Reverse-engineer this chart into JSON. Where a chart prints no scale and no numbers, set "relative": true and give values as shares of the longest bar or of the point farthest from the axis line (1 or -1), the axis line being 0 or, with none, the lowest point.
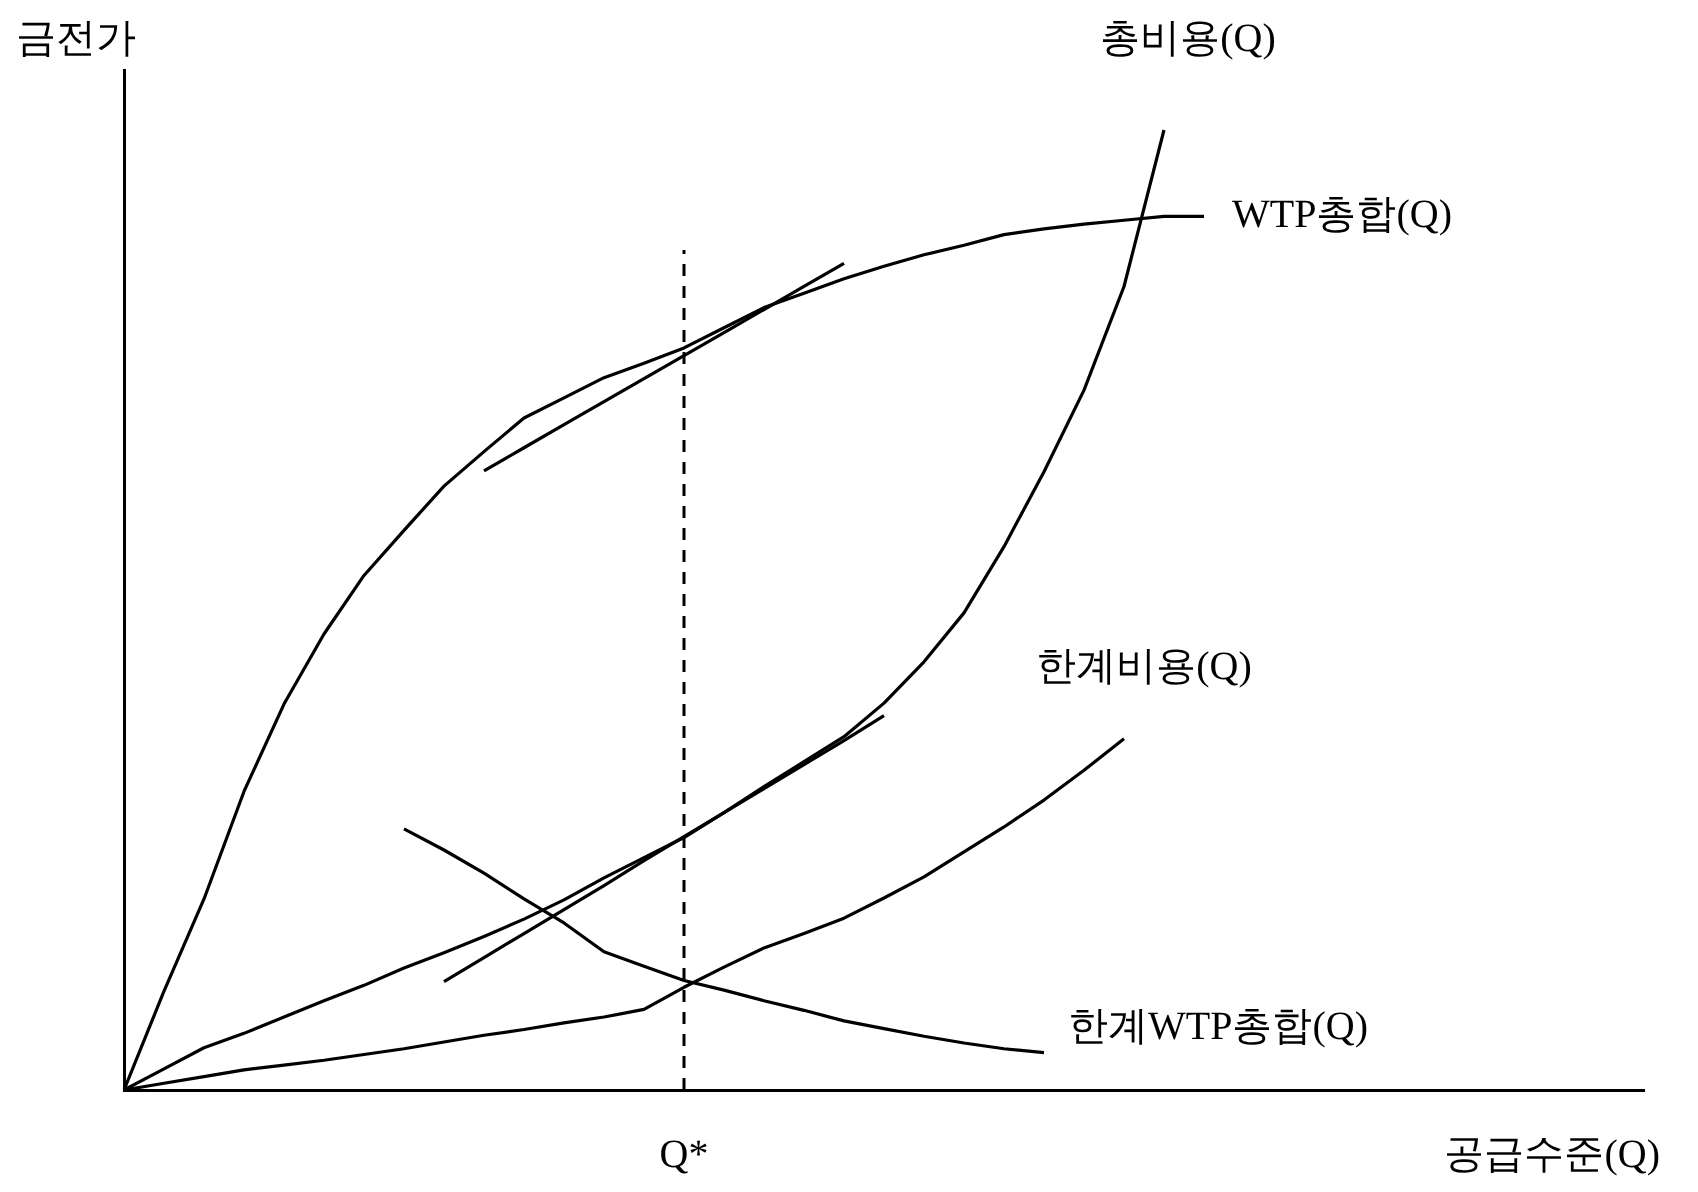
{
  "chart_data": {
    "type": "line",
    "xlabel": "공급수준(Q)",
    "ylabel": "금전가",
    "relative": true,
    "marker": "none",
    "line_style": "solid",
    "categories": [
      null,
      null,
      null,
      null,
      null,
      null,
      null,
      null,
      null,
      null,
      null,
      null,
      null,
      null,
      null,
      null,
      null,
      null,
      null,
      null,
      null,
      null,
      null,
      null,
      null,
      null,
      null,
      null,
      null,
      null,
      null,
      null,
      null,
      null,
      null,
      null,
      null,
      null,
      null
    ],
    "series": [
      {
        "name": "총비용(Q)",
        "color": "#000000",
        "values": [
          0,
          0.022,
          0.044,
          0.059,
          0.076,
          0.093,
          0.109,
          0.127,
          0.143,
          0.16,
          0.178,
          0.198,
          0.221,
          0.242,
          0.263,
          0.289,
          0.316,
          0.342,
          0.368,
          0.403,
          0.446,
          0.497,
          0.566,
          0.644,
          0.729,
          0.837,
          1.0,
          null,
          null,
          null,
          null,
          null,
          null,
          null,
          null,
          null,
          null,
          null,
          null
        ]
      },
      {
        "name": "WTP총합(Q)",
        "color": "#000000",
        "values": [
          0,
          0.103,
          0.199,
          0.311,
          0.402,
          0.475,
          0.536,
          0.583,
          0.629,
          0.665,
          0.7,
          0.721,
          0.742,
          0.757,
          0.773,
          0.794,
          0.815,
          0.83,
          0.845,
          0.858,
          0.87,
          0.88,
          0.891,
          0.897,
          0.902,
          0.906,
          0.91,
          0.91,
          null,
          null,
          null,
          null,
          null,
          null,
          null,
          null,
          null,
          null,
          null
        ]
      },
      {
        "name": "한계비용(Q)",
        "color": "#000000",
        "values": [
          0,
          0.007,
          0.014,
          0.021,
          0.026,
          0.031,
          0.037,
          0.043,
          0.05,
          0.057,
          0.063,
          0.07,
          0.076,
          0.084,
          0.107,
          0.128,
          0.148,
          0.163,
          0.179,
          0.2,
          0.222,
          0.248,
          0.274,
          0.302,
          0.333,
          0.366,
          null,
          null,
          null,
          null,
          null,
          null,
          null,
          null,
          null,
          null,
          null,
          null,
          null
        ]
      },
      {
        "name": "한계WTP총합(Q)",
        "color": "#000000",
        "values": [
          null,
          null,
          null,
          null,
          null,
          null,
          null,
          0.272,
          0.25,
          0.226,
          0.199,
          0.174,
          0.144,
          0.129,
          0.114,
          0.104,
          0.093,
          0.083,
          0.072,
          0.064,
          0.056,
          0.049,
          0.043,
          0.039,
          null,
          null,
          null,
          null,
          null,
          null,
          null,
          null,
          null,
          null,
          null,
          null,
          null,
          null,
          null
        ]
      },
      {
        "color": "#000000",
        "values": [
          null,
          null,
          null,
          null,
          null,
          null,
          null,
          null,
          null,
          0.645,
          0.669,
          0.693,
          0.717,
          0.741,
          0.765,
          0.789,
          0.813,
          0.837,
          0.861,
          null,
          null,
          null,
          null,
          null,
          null,
          null,
          null,
          null,
          null,
          null,
          null,
          null,
          null,
          null,
          null,
          null,
          null,
          null,
          null
        ]
      },
      {
        "color": "#000000",
        "values": [
          null,
          null,
          null,
          null,
          null,
          null,
          null,
          null,
          0.113,
          0.138,
          0.163,
          0.188,
          0.213,
          0.239,
          0.264,
          0.289,
          0.314,
          0.339,
          0.364,
          0.39,
          null,
          null,
          null,
          null,
          null,
          null,
          null,
          null,
          null,
          null,
          null,
          null,
          null,
          null,
          null,
          null,
          null,
          null,
          null
        ]
      }
    ],
    "annotations": [
      "Q*"
    ]
  }
}
